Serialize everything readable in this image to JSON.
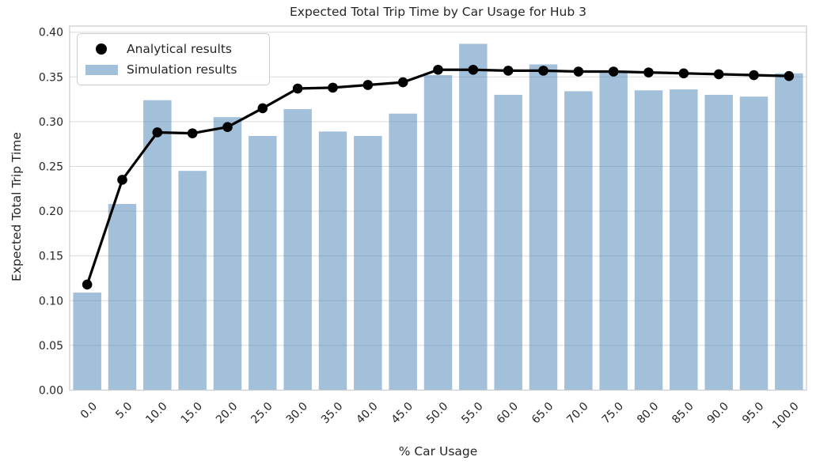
{
  "chart_data": {
    "type": "bar",
    "title": "Expected Total Trip Time by Car Usage for Hub 3",
    "xlabel": "% Car Usage",
    "ylabel": "Expected Total Trip Time",
    "categories": [
      "0.0",
      "5.0",
      "10.0",
      "15.0",
      "20.0",
      "25.0",
      "30.0",
      "35.0",
      "40.0",
      "45.0",
      "50.0",
      "55.0",
      "60.0",
      "65.0",
      "70.0",
      "75.0",
      "80.0",
      "85.0",
      "90.0",
      "95.0",
      "100.0"
    ],
    "series": [
      {
        "name": "Analytical results",
        "type": "line",
        "marker": "circle",
        "color": "#000000",
        "values": [
          0.118,
          0.235,
          0.288,
          0.287,
          0.294,
          0.315,
          0.337,
          0.338,
          0.341,
          0.344,
          0.358,
          0.358,
          0.357,
          0.357,
          0.356,
          0.356,
          0.355,
          0.354,
          0.353,
          0.352,
          0.351
        ]
      },
      {
        "name": "Simulation results",
        "type": "bar",
        "color": "rgba(70,130,180,0.5)",
        "values": [
          0.109,
          0.208,
          0.324,
          0.245,
          0.305,
          0.284,
          0.314,
          0.289,
          0.284,
          0.309,
          0.352,
          0.387,
          0.33,
          0.364,
          0.334,
          0.355,
          0.335,
          0.336,
          0.33,
          0.328,
          0.354
        ]
      }
    ],
    "yticks": [
      "0.00",
      "0.05",
      "0.10",
      "0.15",
      "0.20",
      "0.25",
      "0.30",
      "0.35",
      "0.40"
    ],
    "ytick_values": [
      0.0,
      0.05,
      0.1,
      0.15,
      0.2,
      0.25,
      0.3,
      0.35,
      0.4
    ],
    "ylim": [
      0,
      0.4068
    ],
    "grid": true,
    "legend_position": "upper-left",
    "colors": {
      "bar_fill": "rgba(70,130,180,0.5)",
      "line": "#000000",
      "gridline": "#dadada",
      "spine": "#cacaca",
      "text": "#262626",
      "background": "#ffffff"
    }
  }
}
